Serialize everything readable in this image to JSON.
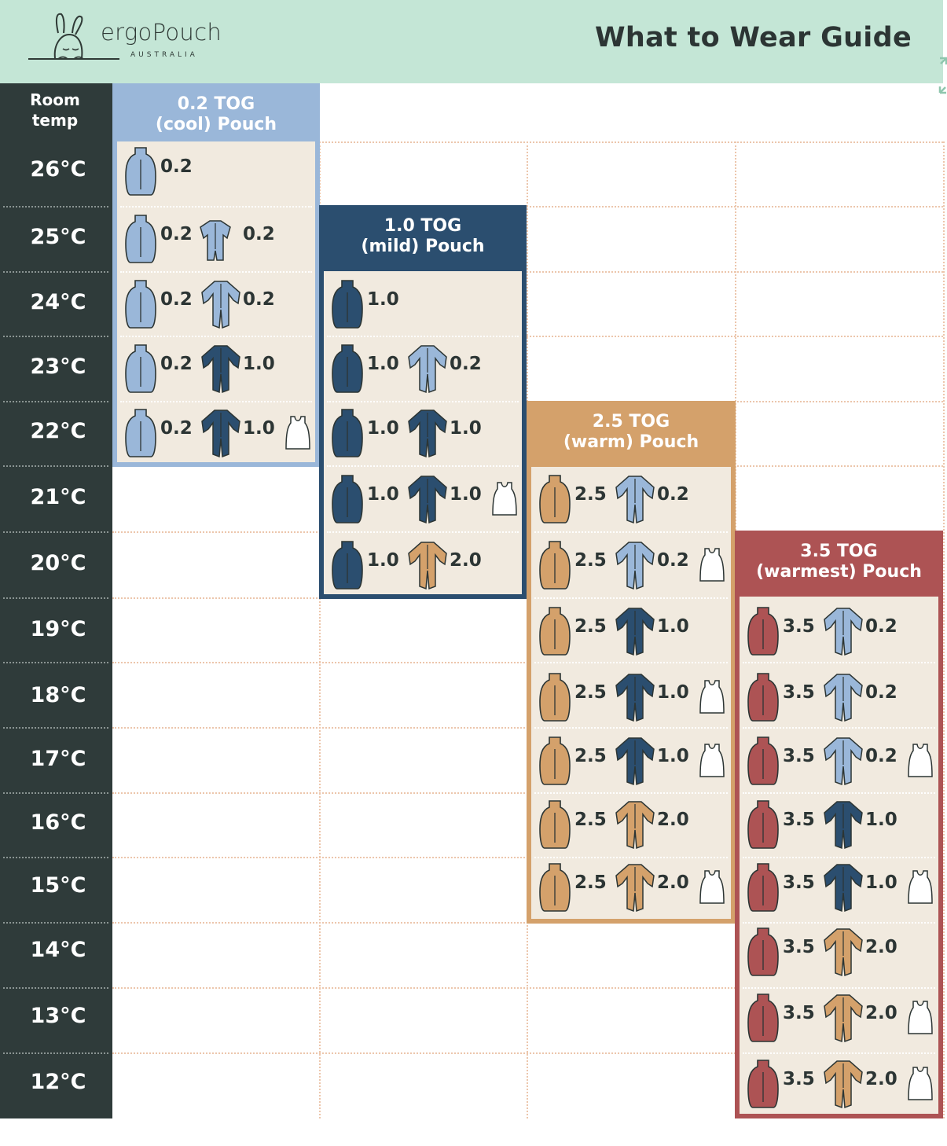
{
  "header": {
    "brand": "ergoPouch",
    "brand_sub": "AUSTRALIA",
    "title": "What to Wear Guide"
  },
  "colors": {
    "cool": "#9ab7d9",
    "mild": "#2b4e6f",
    "warm": "#d4a16b",
    "warmest": "#ad5354",
    "dark": "#2f3b3a",
    "cream": "#f1eadf",
    "mint": "#c4e6d6"
  },
  "left": {
    "room_label": "Room\ntemp",
    "temps": [
      "26°C",
      "25°C",
      "24°C",
      "23°C",
      "22°C",
      "21°C",
      "20°C",
      "19°C",
      "18°C",
      "17°C",
      "16°C",
      "15°C",
      "14°C",
      "13°C",
      "12°C"
    ]
  },
  "panels": [
    {
      "title": "0.2 TOG\n(cool) Pouch",
      "key": "cool",
      "rows": [
        [
          {
            "icon": "pouch",
            "color": "cool",
            "val": "0.2"
          }
        ],
        [
          {
            "icon": "pouch",
            "color": "cool",
            "val": "0.2"
          },
          {
            "icon": "shortie",
            "color": "cool",
            "val": "0.2"
          }
        ],
        [
          {
            "icon": "pouch",
            "color": "cool",
            "val": "0.2"
          },
          {
            "icon": "romper",
            "color": "cool",
            "val": "0.2"
          }
        ],
        [
          {
            "icon": "pouch",
            "color": "cool",
            "val": "0.2"
          },
          {
            "icon": "romper",
            "color": "mild",
            "val": "1.0"
          }
        ],
        [
          {
            "icon": "pouch",
            "color": "cool",
            "val": "0.2"
          },
          {
            "icon": "romper",
            "color": "mild",
            "val": "1.0"
          },
          {
            "icon": "singlet",
            "color": "white",
            "val": ""
          }
        ]
      ]
    },
    {
      "title": "1.0 TOG\n(mild) Pouch",
      "key": "mild",
      "rows": [
        [
          {
            "icon": "pouch",
            "color": "mild",
            "val": "1.0"
          }
        ],
        [
          {
            "icon": "pouch",
            "color": "mild",
            "val": "1.0"
          },
          {
            "icon": "romper",
            "color": "cool",
            "val": "0.2"
          }
        ],
        [
          {
            "icon": "pouch",
            "color": "mild",
            "val": "1.0"
          },
          {
            "icon": "romper",
            "color": "mild",
            "val": "1.0"
          }
        ],
        [
          {
            "icon": "pouch",
            "color": "mild",
            "val": "1.0"
          },
          {
            "icon": "romper",
            "color": "mild",
            "val": "1.0"
          },
          {
            "icon": "singlet",
            "color": "white",
            "val": ""
          }
        ],
        [
          {
            "icon": "pouch",
            "color": "mild",
            "val": "1.0"
          },
          {
            "icon": "romper",
            "color": "warm",
            "val": "2.0"
          }
        ]
      ]
    },
    {
      "title": "2.5 TOG\n(warm) Pouch",
      "key": "warm",
      "rows": [
        [
          {
            "icon": "pouch",
            "color": "warm",
            "val": "2.5"
          },
          {
            "icon": "romper",
            "color": "cool",
            "val": "0.2"
          }
        ],
        [
          {
            "icon": "pouch",
            "color": "warm",
            "val": "2.5"
          },
          {
            "icon": "romper",
            "color": "cool",
            "val": "0.2"
          },
          {
            "icon": "singlet",
            "color": "white",
            "val": ""
          }
        ],
        [
          {
            "icon": "pouch",
            "color": "warm",
            "val": "2.5"
          },
          {
            "icon": "romper",
            "color": "mild",
            "val": "1.0"
          }
        ],
        [
          {
            "icon": "pouch",
            "color": "warm",
            "val": "2.5"
          },
          {
            "icon": "romper",
            "color": "mild",
            "val": "1.0"
          },
          {
            "icon": "singlet",
            "color": "white",
            "val": ""
          }
        ],
        [
          {
            "icon": "pouch",
            "color": "warm",
            "val": "2.5"
          },
          {
            "icon": "romper",
            "color": "mild",
            "val": "1.0"
          },
          {
            "icon": "singlet",
            "color": "white",
            "val": ""
          }
        ],
        [
          {
            "icon": "pouch",
            "color": "warm",
            "val": "2.5"
          },
          {
            "icon": "romper",
            "color": "warm",
            "val": "2.0"
          }
        ],
        [
          {
            "icon": "pouch",
            "color": "warm",
            "val": "2.5"
          },
          {
            "icon": "romper",
            "color": "warm",
            "val": "2.0"
          },
          {
            "icon": "singlet",
            "color": "white",
            "val": ""
          }
        ]
      ]
    },
    {
      "title": "3.5 TOG\n(warmest) Pouch",
      "key": "warmest",
      "rows": [
        [
          {
            "icon": "pouch",
            "color": "warmest",
            "val": "3.5"
          },
          {
            "icon": "romper",
            "color": "cool",
            "val": "0.2"
          }
        ],
        [
          {
            "icon": "pouch",
            "color": "warmest",
            "val": "3.5"
          },
          {
            "icon": "romper",
            "color": "cool",
            "val": "0.2"
          }
        ],
        [
          {
            "icon": "pouch",
            "color": "warmest",
            "val": "3.5"
          },
          {
            "icon": "romper",
            "color": "cool",
            "val": "0.2"
          },
          {
            "icon": "singlet",
            "color": "white",
            "val": ""
          }
        ],
        [
          {
            "icon": "pouch",
            "color": "warmest",
            "val": "3.5"
          },
          {
            "icon": "romper",
            "color": "mild",
            "val": "1.0"
          }
        ],
        [
          {
            "icon": "pouch",
            "color": "warmest",
            "val": "3.5"
          },
          {
            "icon": "romper",
            "color": "mild",
            "val": "1.0"
          },
          {
            "icon": "singlet",
            "color": "white",
            "val": ""
          }
        ],
        [
          {
            "icon": "pouch",
            "color": "warmest",
            "val": "3.5"
          },
          {
            "icon": "romper",
            "color": "warm",
            "val": "2.0"
          }
        ],
        [
          {
            "icon": "pouch",
            "color": "warmest",
            "val": "3.5"
          },
          {
            "icon": "romper",
            "color": "warm",
            "val": "2.0"
          },
          {
            "icon": "singlet",
            "color": "white",
            "val": ""
          }
        ],
        [
          {
            "icon": "pouch",
            "color": "warmest",
            "val": "3.5"
          },
          {
            "icon": "romper",
            "color": "warm",
            "val": "2.0"
          },
          {
            "icon": "singlet",
            "color": "white",
            "val": ""
          }
        ]
      ]
    }
  ]
}
